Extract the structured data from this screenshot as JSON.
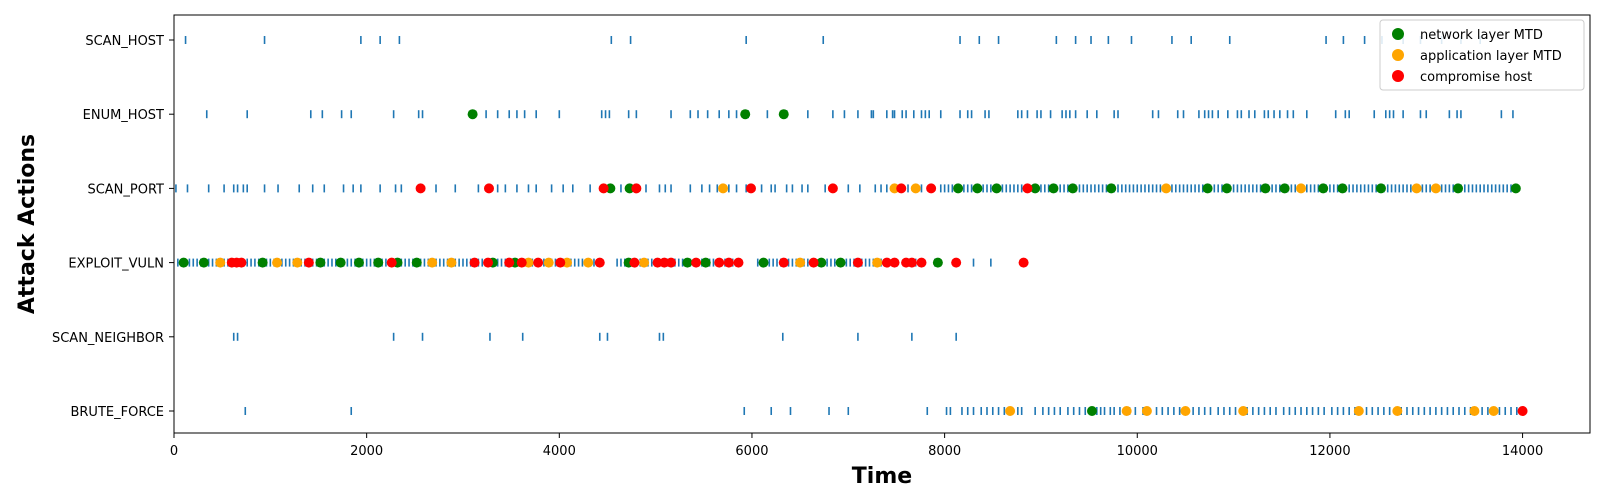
{
  "chart_data": {
    "type": "scatter",
    "title": "",
    "xlabel": "Time",
    "ylabel": "Attack Actions",
    "xlim": [
      0,
      14700
    ],
    "xticks": [
      0,
      2000,
      4000,
      6000,
      8000,
      10000,
      12000,
      14000
    ],
    "categories": [
      "BRUTE_FORCE",
      "SCAN_NEIGHBOR",
      "EXPLOIT_VULN",
      "SCAN_PORT",
      "ENUM_HOST",
      "SCAN_HOST"
    ],
    "legend_position": "top-right",
    "grid": false,
    "action_events": [
      {
        "action": "SCAN_HOST",
        "color": "#1f77b4",
        "times": [
          120,
          940,
          1940,
          2140,
          2340,
          4540,
          4740,
          5940,
          6740,
          8160,
          8360,
          8560,
          9160,
          9360,
          9520,
          9700,
          9940,
          10360,
          10560,
          10960,
          11960,
          12140,
          12360,
          12540,
          12760,
          12940,
          13160,
          13360,
          13560
        ]
      },
      {
        "action": "ENUM_HOST",
        "color": "#1f77b4",
        "times": [
          340,
          760,
          1420,
          1540,
          1740,
          1840,
          2280,
          2540,
          2580,
          3240,
          3360,
          3480,
          3560,
          3640,
          3760,
          4000,
          4440,
          4480,
          4520,
          4720,
          4800,
          5160,
          5360,
          5440,
          5540,
          5660,
          5760,
          5840,
          5960,
          6160,
          6360,
          6580,
          6840,
          6960,
          7100,
          7240,
          7260,
          7400,
          7460,
          7480,
          7560,
          7600,
          7680,
          7760,
          7800,
          7840,
          7960,
          8160,
          8240,
          8280,
          8420,
          8460,
          8760,
          8800,
          8860,
          8960,
          9000,
          9100,
          9220,
          9260,
          9300,
          9360,
          9480,
          9580,
          9760,
          9800,
          10160,
          10220,
          10420,
          10480,
          10640,
          10700,
          10740,
          10780,
          10840,
          10940,
          11040,
          11080,
          11160,
          11220,
          11320,
          11360,
          11420,
          11480,
          11560,
          11620,
          11760,
          12060,
          12160,
          12200,
          12460,
          12580,
          12620,
          12660,
          12760,
          12940,
          13000,
          13240,
          13320,
          13360,
          13780,
          13900
        ]
      },
      {
        "action": "SCAN_PORT",
        "color": "#1f77b4",
        "times": [
          20,
          140,
          360,
          520,
          620,
          660,
          720,
          760,
          940,
          1080,
          1300,
          1440,
          1560,
          1760,
          1860,
          1940,
          2140,
          2300,
          2360,
          2560,
          2720,
          2920,
          3160,
          3360,
          3440,
          3560,
          3680,
          3760,
          3920,
          4040,
          4140,
          4320,
          4440,
          4640,
          4900,
          5040,
          5100,
          5160,
          5360,
          5480,
          5560,
          5640,
          5760,
          5840,
          5940,
          6100,
          6200,
          6240,
          6360,
          6420,
          6520,
          6580,
          6760,
          6860,
          7000,
          7120,
          7280,
          7340,
          7400,
          7460,
          7620,
          7760,
          7880,
          7960,
          8000,
          8040,
          8080,
          8120,
          8160,
          8200,
          8240,
          8280,
          8320,
          8360,
          8400,
          8440,
          8480,
          8520,
          8560,
          8600,
          8640,
          8680,
          8720,
          8760,
          8800,
          8840,
          8880,
          8920,
          8960,
          9000,
          9040,
          9080,
          9120,
          9160,
          9200,
          9240,
          9280,
          9320,
          9360,
          9400,
          9440,
          9480,
          9520,
          9560,
          9600,
          9640,
          9680,
          9720,
          9760,
          9800,
          9840,
          9880,
          9920,
          9960,
          10000,
          10040,
          10080,
          10120,
          10160,
          10200,
          10240,
          10280,
          10320,
          10360,
          10400,
          10440,
          10480,
          10520,
          10560,
          10600,
          10640,
          10680,
          10720,
          10760,
          10800,
          10840,
          10880,
          10920,
          10960,
          11000,
          11040,
          11080,
          11120,
          11160,
          11200,
          11240,
          11280,
          11320,
          11360,
          11400,
          11440,
          11480,
          11520,
          11560,
          11600,
          11640,
          11680,
          11720,
          11760,
          11800,
          11840,
          11880,
          11920,
          11960,
          12000,
          12040,
          12080,
          12120,
          12160,
          12200,
          12240,
          12280,
          12320,
          12360,
          12400,
          12440,
          12480,
          12520,
          12560,
          12600,
          12640,
          12680,
          12720,
          12760,
          12800,
          12840,
          12880,
          12920,
          12960,
          13000,
          13040,
          13080,
          13120,
          13160,
          13200,
          13240,
          13280,
          13320,
          13360,
          13400,
          13440,
          13480,
          13520,
          13560,
          13600,
          13640,
          13680,
          13720,
          13760,
          13800,
          13840,
          13880,
          13920
        ]
      },
      {
        "action": "EXPLOIT_VULN",
        "color": "#1f77b4",
        "times": [
          40,
          80,
          120,
          160,
          200,
          240,
          280,
          320,
          360,
          400,
          440,
          480,
          520,
          560,
          600,
          640,
          680,
          720,
          760,
          800,
          840,
          880,
          920,
          960,
          1000,
          1040,
          1080,
          1120,
          1160,
          1200,
          1240,
          1280,
          1320,
          1360,
          1400,
          1440,
          1480,
          1520,
          1560,
          1600,
          1640,
          1680,
          1720,
          1760,
          1800,
          1840,
          1880,
          1920,
          1960,
          2000,
          2040,
          2080,
          2120,
          2160,
          2200,
          2240,
          2280,
          2320,
          2360,
          2400,
          2440,
          2480,
          2520,
          2560,
          2600,
          2640,
          2680,
          2720,
          2760,
          2800,
          2840,
          2880,
          2920,
          2960,
          3000,
          3040,
          3080,
          3120,
          3160,
          3200,
          3240,
          3280,
          3320,
          3360,
          3400,
          3440,
          3480,
          3520,
          3560,
          3600,
          3640,
          3680,
          3720,
          3760,
          3800,
          3840,
          3880,
          3920,
          3960,
          4000,
          4040,
          4080,
          4120,
          4160,
          4200,
          4240,
          4280,
          4320,
          4360,
          4400,
          4600,
          4640,
          4680,
          4720,
          4760,
          4800,
          4840,
          4880,
          4920,
          4960,
          5000,
          5040,
          5080,
          5120,
          5160,
          5200,
          5240,
          5280,
          5320,
          5360,
          5400,
          5440,
          5480,
          5520,
          5560,
          5600,
          5640,
          5680,
          5720,
          5760,
          5800,
          5840,
          6060,
          6100,
          6140,
          6180,
          6220,
          6260,
          6300,
          6340,
          6380,
          6420,
          6460,
          6500,
          6540,
          6580,
          6620,
          6660,
          6700,
          6740,
          6780,
          6820,
          6860,
          6900,
          6940,
          6980,
          7020,
          7060,
          7100,
          7140,
          7180,
          7220,
          7260,
          7300,
          7340,
          7400,
          7500,
          7700,
          7900,
          8300,
          8480
        ]
      },
      {
        "action": "SCAN_NEIGHBOR",
        "color": "#1f77b4",
        "times": [
          620,
          660,
          2280,
          2580,
          3280,
          3620,
          4420,
          4500,
          5040,
          5080,
          6320,
          7100,
          7660,
          8120
        ]
      },
      {
        "action": "BRUTE_FORCE",
        "color": "#1f77b4",
        "times": [
          740,
          1840,
          5920,
          6200,
          6400,
          6800,
          7000,
          7820,
          8020,
          8060,
          8180,
          8240,
          8300,
          8380,
          8440,
          8500,
          8560,
          8620,
          8700,
          8760,
          8800,
          8940,
          9020,
          9080,
          9140,
          9200,
          9280,
          9340,
          9400,
          9460,
          9520,
          9580,
          9620,
          9660,
          9720,
          9760,
          9820,
          9880,
          9920,
          9980,
          10060,
          10120,
          10200,
          10260,
          10320,
          10380,
          10440,
          10520,
          10580,
          10640,
          10700,
          10760,
          10840,
          10900,
          10960,
          11020,
          11080,
          11140,
          11200,
          11260,
          11320,
          11380,
          11440,
          11520,
          11580,
          11640,
          11700,
          11760,
          11820,
          11880,
          11940,
          12020,
          12080,
          12140,
          12200,
          12260,
          12320,
          12380,
          12440,
          12500,
          12560,
          12620,
          12680,
          12740,
          12800,
          12860,
          12920,
          12980,
          13040,
          13100,
          13160,
          13220,
          13280,
          13340,
          13400,
          13460,
          13520,
          13580,
          13640,
          13700,
          13760,
          13820,
          13880,
          13940
        ]
      }
    ],
    "series": [
      {
        "name": "network layer MTD",
        "color": "#008000",
        "points": [
          {
            "action": "ENUM_HOST",
            "times": [
              3100,
              5930,
              6330
            ]
          },
          {
            "action": "SCAN_PORT",
            "times": [
              4530,
              4730,
              8140,
              8340,
              8540,
              8940,
              9130,
              9330,
              9730,
              10730,
              10930,
              11330,
              11530,
              11930,
              12130,
              12530,
              13330,
              13930
            ]
          },
          {
            "action": "EXPLOIT_VULN",
            "times": [
              100,
              310,
              920,
              1520,
              1730,
              1920,
              2120,
              2320,
              2520,
              3310,
              3540,
              4720,
              5330,
              5520,
              6120,
              6720,
              6920,
              7930
            ]
          },
          {
            "action": "BRUTE_FORCE",
            "times": [
              9530
            ]
          }
        ]
      },
      {
        "name": "application layer MTD",
        "color": "#FFA500",
        "points": [
          {
            "action": "SCAN_PORT",
            "times": [
              5700,
              7480,
              7700,
              10300,
              11700,
              12900,
              13100
            ]
          },
          {
            "action": "EXPLOIT_VULN",
            "times": [
              480,
              1070,
              1280,
              2680,
              2880,
              3680,
              3890,
              4080,
              4300,
              4880,
              6500,
              7300
            ]
          },
          {
            "action": "BRUTE_FORCE",
            "times": [
              8680,
              9890,
              10100,
              10500,
              11100,
              12300,
              12700,
              13500,
              13700
            ]
          }
        ]
      },
      {
        "name": "compromise host",
        "color": "#FF0000",
        "points": [
          {
            "action": "SCAN_PORT",
            "times": [
              2560,
              3270,
              4460,
              4800,
              5990,
              6840,
              7550,
              7860,
              8860
            ]
          },
          {
            "action": "EXPLOIT_VULN",
            "times": [
              600,
              650,
              700,
              1400,
              2260,
              3120,
              3260,
              3480,
              3610,
              3780,
              4010,
              4420,
              4780,
              5020,
              5090,
              5160,
              5420,
              5660,
              5760,
              5860,
              6330,
              6640,
              7100,
              7400,
              7480,
              7600,
              7660,
              7760,
              8120,
              8820
            ]
          },
          {
            "action": "BRUTE_FORCE",
            "times": [
              14000
            ]
          }
        ]
      }
    ]
  }
}
